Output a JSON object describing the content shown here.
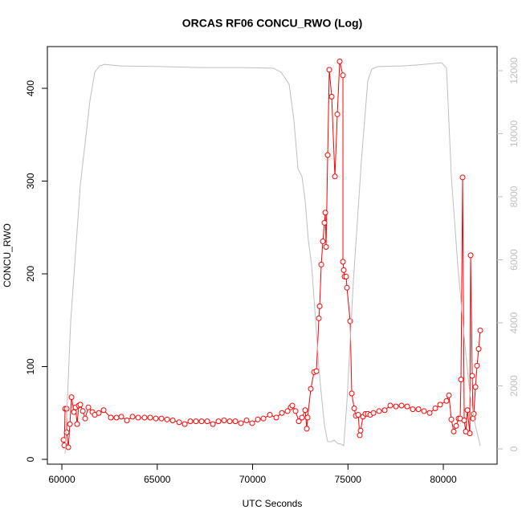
{
  "chart_data": {
    "type": "line",
    "title": "ORCAS RF06 CONCU_RWO (Log)",
    "x_label": "UTC Seconds",
    "y_label": "CONCU_RWO",
    "xlim": [
      59240,
      82820
    ],
    "xticks": [
      60000,
      65000,
      70000,
      75000,
      80000
    ],
    "ylim": [
      -5.2,
      445
    ],
    "yticks": [
      0,
      100,
      200,
      300,
      400
    ],
    "y2lim": [
      -484,
      12764
    ],
    "y2ticks": [
      0,
      2000,
      4000,
      6000,
      8000,
      10000,
      12000
    ],
    "series": [
      {
        "color": "#ff0000",
        "markers": true,
        "x": [
          60084,
          60126,
          60168,
          60253,
          60253,
          60337,
          60421,
          60505,
          60632,
          60716,
          60800,
          60884,
          60968,
          61095,
          61221,
          61389,
          61600,
          61726,
          61937,
          62189,
          62568,
          62863,
          63116,
          63411,
          63705,
          64000,
          64337,
          64632,
          64926,
          65221,
          65516,
          65811,
          66147,
          66442,
          66737,
          67032,
          67326,
          67621,
          67916,
          68211,
          68505,
          68800,
          69095,
          69389,
          69684,
          69979,
          70274,
          70568,
          70905,
          71242,
          71537,
          71832,
          72000,
          72084,
          72253,
          72421,
          72589,
          72758,
          72842,
          72884,
          73053,
          73221,
          73347,
          73474,
          73516,
          73600,
          73684,
          73768,
          73811,
          73853,
          73937,
          74021,
          74147,
          74316,
          74442,
          74568,
          74737,
          74737,
          74779,
          74821,
          74905,
          74947,
          75116,
          75200,
          75326,
          75411,
          75537,
          75621,
          75663,
          75789,
          75916,
          76042,
          76168,
          76337,
          76632,
          76926,
          77221,
          77516,
          77810,
          78105,
          78400,
          78695,
          78989,
          79284,
          79579,
          79832,
          80168,
          80295,
          80421,
          80547,
          80674,
          80800,
          80884,
          80926,
          81011,
          81095,
          81179,
          81263,
          81389,
          81432,
          81516,
          81558,
          81600,
          81684,
          81768,
          81853,
          81937
        ],
        "values": [
          21,
          15,
          54.5,
          54.5,
          29,
          13,
          38,
          67,
          51,
          56,
          38,
          58,
          59,
          52,
          44,
          56,
          51,
          48,
          50,
          53,
          45,
          45,
          46,
          42,
          46,
          45,
          45,
          45,
          44,
          44,
          43,
          42,
          40,
          38,
          41,
          41,
          41,
          41,
          38,
          41,
          42,
          41,
          41,
          39,
          42,
          39,
          43,
          44,
          48,
          45,
          50,
          52,
          56,
          58,
          52,
          41,
          45,
          53,
          33,
          45,
          76,
          94,
          95,
          152,
          165,
          210,
          235,
          255,
          266,
          229,
          328,
          420,
          391,
          305,
          372,
          429,
          414,
          213,
          204,
          197,
          197,
          185,
          149,
          71,
          55,
          47,
          48,
          26,
          31,
          46,
          49,
          49,
          48,
          50,
          52,
          53,
          58,
          57,
          58,
          57,
          54,
          54,
          52,
          50,
          55,
          59,
          63,
          69,
          43,
          30,
          36,
          44,
          44,
          86,
          304,
          42,
          30,
          53,
          28,
          220,
          90,
          44,
          49,
          78,
          101,
          119,
          139
        ]
      },
      {
        "color": "#bebebe",
        "markers": false,
        "axis": "y2",
        "x": [
          60168,
          60463,
          60968,
          61474,
          61726,
          61979,
          62232,
          63074,
          65179,
          67284,
          69389,
          71074,
          71495,
          71916,
          72168,
          72379,
          72589,
          72758,
          72926,
          73095,
          73305,
          73516,
          73768,
          73937,
          74105,
          74274,
          74442,
          74653,
          74779,
          74947,
          75284,
          75705,
          76042,
          76253,
          76547,
          77810,
          78653,
          79916,
          80168,
          80421,
          80758,
          81095,
          81389,
          81684,
          81937
        ],
        "values": [
          -150,
          4050,
          8380,
          11060,
          11950,
          12150,
          12200,
          12150,
          12130,
          12100,
          12100,
          12080,
          11950,
          11570,
          10420,
          8890,
          8640,
          7870,
          6600,
          5830,
          4050,
          2270,
          740,
          230,
          230,
          280,
          180,
          150,
          100,
          1500,
          5320,
          9150,
          11690,
          12050,
          12130,
          12150,
          12180,
          12250,
          12080,
          8640,
          5830,
          3540,
          1760,
          740,
          100
        ]
      }
    ]
  }
}
